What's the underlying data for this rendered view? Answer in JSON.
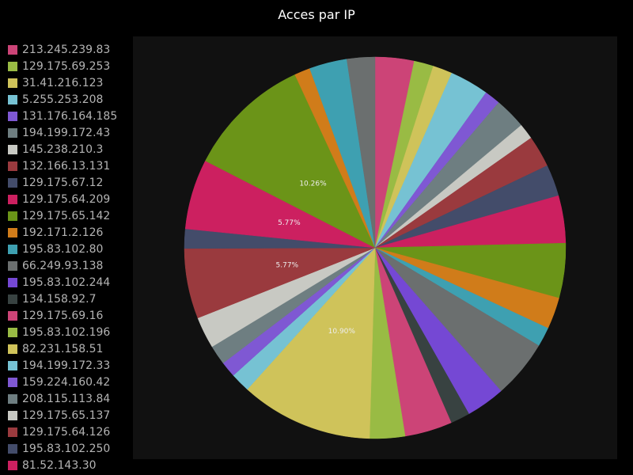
{
  "chart_data": {
    "type": "pie",
    "title": "Acces par IP",
    "legend_position": "left",
    "slices": [
      {
        "label": "213.245.239.83",
        "value": 3.2,
        "color": "#cc4477"
      },
      {
        "label": "129.175.69.253",
        "value": 1.6,
        "color": "#99bb44"
      },
      {
        "label": "31.41.216.123",
        "value": 1.6,
        "color": "#cfc35a"
      },
      {
        "label": "5.255.253.208",
        "value": 3.2,
        "color": "#76c2d3"
      },
      {
        "label": "131.176.164.185",
        "value": 1.3,
        "color": "#7f58d3"
      },
      {
        "label": "194.199.172.43",
        "value": 2.6,
        "color": "#6e7e81"
      },
      {
        "label": "145.238.210.3",
        "value": 1.3,
        "color": "#c8c9c3"
      },
      {
        "label": "132.166.13.131",
        "value": 2.6,
        "color": "#9a3a3e"
      },
      {
        "label": "129.175.67.12",
        "value": 2.6,
        "color": "#434c6a"
      },
      {
        "label": "129.175.64.209",
        "value": 3.9,
        "color": "#cc2060"
      },
      {
        "label": "129.175.65.142",
        "value": 4.5,
        "color": "#6b9418"
      },
      {
        "label": "192.171.2.126",
        "value": 2.6,
        "color": "#d07c1a"
      },
      {
        "label": "195.83.102.80",
        "value": 1.6,
        "color": "#3ea0b1"
      },
      {
        "label": "66.249.93.138",
        "value": 4.8,
        "color": "#6b6f6f"
      },
      {
        "label": "195.83.102.244",
        "value": 3.2,
        "color": "#7548d4"
      },
      {
        "label": "134.158.92.7",
        "value": 1.6,
        "color": "#384241"
      },
      {
        "label": "129.175.69.16",
        "value": 3.9,
        "color": "#cc4477"
      },
      {
        "label": "195.83.102.196",
        "value": 2.9,
        "color": "#99bb44"
      },
      {
        "label": "82.231.158.51",
        "value": 10.9,
        "color": "#cfc35a",
        "pct_label": "10.90%"
      },
      {
        "label": "194.199.172.33",
        "value": 1.6,
        "color": "#76c2d3"
      },
      {
        "label": "159.224.160.42",
        "value": 1.3,
        "color": "#7f58d3"
      },
      {
        "label": "208.115.113.84",
        "value": 1.6,
        "color": "#6e7e81"
      },
      {
        "label": "129.175.65.137",
        "value": 2.6,
        "color": "#c8c9c3"
      },
      {
        "label": "129.175.64.126",
        "value": 5.77,
        "color": "#9a3a3e",
        "pct_label": "5.77%"
      },
      {
        "label": "195.83.102.250",
        "value": 1.6,
        "color": "#434c6a"
      },
      {
        "label": "81.52.143.30",
        "value": 5.77,
        "color": "#cc2060",
        "pct_label": "5.77%"
      },
      {
        "value": 10.26,
        "color": "#6b9418",
        "pct_label": "10.26%"
      },
      {
        "value": 1.3,
        "color": "#d07c1a"
      },
      {
        "value": 3.1,
        "color": "#3ea0b1"
      },
      {
        "value": 2.3,
        "color": "#6b6f6f"
      }
    ]
  }
}
